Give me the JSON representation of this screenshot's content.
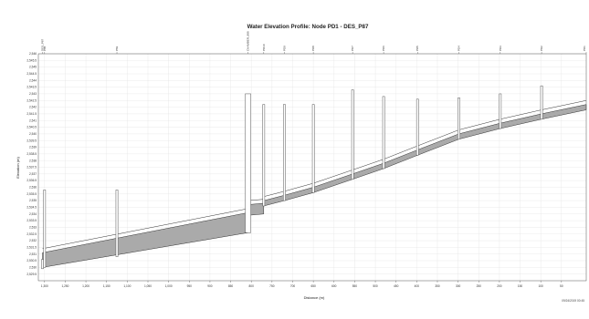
{
  "chart_data": {
    "type": "line",
    "title": "Water Elevation Profile:  Node PD1 - DES_P87",
    "xlabel": "Distance (m)",
    "ylabel": "Elevation (m)",
    "xlim": [
      1315,
      -10
    ],
    "ylim": [
      2529,
      2546
    ],
    "x_ticks": [
      1300,
      1250,
      1200,
      1150,
      1100,
      1050,
      1000,
      950,
      900,
      850,
      800,
      750,
      700,
      650,
      600,
      550,
      500,
      450,
      400,
      350,
      300,
      250,
      200,
      150,
      100,
      50
    ],
    "x_tick_labels": [
      "1,300",
      "1,250",
      "1,200",
      "1,150",
      "1,100",
      "1,050",
      "1,000",
      "950",
      "900",
      "850",
      "800",
      "750",
      "700",
      "650",
      "600",
      "550",
      "500",
      "450",
      "400",
      "350",
      "300",
      "250",
      "200",
      "150",
      "100",
      "50"
    ],
    "y_ticks": [
      2529.5,
      2530,
      2530.5,
      2531,
      2531.5,
      2532,
      2532.5,
      2533,
      2533.5,
      2534,
      2534.5,
      2535,
      2535.5,
      2536,
      2536.5,
      2537,
      2537.5,
      2538,
      2538.5,
      2539,
      2539.5,
      2540,
      2540.5,
      2541,
      2541.5,
      2542,
      2542.5,
      2543,
      2543.5,
      2544,
      2544.5,
      2545,
      2545.5,
      2546
    ],
    "y_tick_labels": [
      "2,529.5",
      "2,530",
      "2,530.5",
      "2,531",
      "2,531.5",
      "2,532",
      "2,532.5",
      "2,533",
      "2,533.5",
      "2,534",
      "2,534.5",
      "2,535",
      "2,535.5",
      "2,536",
      "2,536.5",
      "2,537",
      "2,537.5",
      "2,538",
      "2,538.5",
      "2,539",
      "2,539.5",
      "2,540",
      "2,540.5",
      "2,541",
      "2,541.5",
      "2,542",
      "2,542.5",
      "2,543",
      "2,543.5",
      "2,544",
      "2,544.5",
      "2,545",
      "2,545.5",
      "2,546"
    ],
    "nodes": [
      {
        "name": "DES_P87",
        "x": 1305,
        "invert": 2529.9,
        "top": 2530.6
      },
      {
        "name": "P85",
        "x": 1300,
        "invert": 2530.0,
        "top": 2535.8
      },
      {
        "name": "P83",
        "x": 1125,
        "invert": 2530.8,
        "top": 2535.8
      },
      {
        "name": "CHAMBER_888",
        "x": 808,
        "invert": 2532.6,
        "top": 2543.0
      },
      {
        "name": "PD10",
        "x": 770,
        "invert": 2534.6,
        "top": 2542.2
      },
      {
        "name": "PD9",
        "x": 720,
        "invert": 2535.0,
        "top": 2542.2
      },
      {
        "name": "PD8",
        "x": 650,
        "invert": 2535.6,
        "top": 2542.2
      },
      {
        "name": "PD7",
        "x": 555,
        "invert": 2536.6,
        "top": 2543.3
      },
      {
        "name": "PD6",
        "x": 480,
        "invert": 2537.4,
        "top": 2542.8
      },
      {
        "name": "PD5",
        "x": 398,
        "invert": 2538.4,
        "top": 2542.6
      },
      {
        "name": "PD4",
        "x": 298,
        "invert": 2539.6,
        "top": 2542.7
      },
      {
        "name": "PD3",
        "x": 198,
        "invert": 2540.4,
        "top": 2543.0
      },
      {
        "name": "PD2",
        "x": 98,
        "invert": 2541.1,
        "top": 2543.6
      },
      {
        "name": "PD1",
        "x": -10,
        "invert": 2541.8,
        "top": 2541.8
      }
    ],
    "water_segments": [
      {
        "x1": 1305,
        "x2": 808,
        "invert1": 2530.0,
        "invert2": 2532.6,
        "water1": 2531.1,
        "water2": 2534.1
      },
      {
        "x1": 808,
        "x2": 770,
        "invert1": 2533.9,
        "invert2": 2534.0,
        "water1": 2534.7,
        "water2": 2534.8
      },
      {
        "x1": 770,
        "x2": 720,
        "invert1": 2534.6,
        "invert2": 2535.0,
        "water1": 2535.0,
        "water2": 2535.4
      },
      {
        "x1": 720,
        "x2": 650,
        "invert1": 2535.0,
        "invert2": 2535.6,
        "water1": 2535.4,
        "water2": 2536.0
      },
      {
        "x1": 650,
        "x2": 555,
        "invert1": 2535.6,
        "invert2": 2536.6,
        "water1": 2536.0,
        "water2": 2537.0
      },
      {
        "x1": 555,
        "x2": 480,
        "invert1": 2536.6,
        "invert2": 2537.4,
        "water1": 2537.0,
        "water2": 2537.8
      },
      {
        "x1": 480,
        "x2": 398,
        "invert1": 2537.4,
        "invert2": 2538.4,
        "water1": 2537.8,
        "water2": 2538.8
      },
      {
        "x1": 398,
        "x2": 298,
        "invert1": 2538.4,
        "invert2": 2539.6,
        "water1": 2538.8,
        "water2": 2540.0
      },
      {
        "x1": 298,
        "x2": 198,
        "invert1": 2539.6,
        "invert2": 2540.4,
        "water1": 2540.0,
        "water2": 2540.8
      },
      {
        "x1": 198,
        "x2": 98,
        "invert1": 2540.4,
        "invert2": 2541.1,
        "water1": 2540.8,
        "water2": 2541.5
      },
      {
        "x1": 98,
        "x2": -10,
        "invert1": 2541.1,
        "invert2": 2541.8,
        "water1": 2541.5,
        "water2": 2542.2
      }
    ],
    "pipe_crown": [
      {
        "x1": 1305,
        "x2": 808,
        "y1": 2531.4,
        "y2": 2534.4
      },
      {
        "x1": 808,
        "x2": 770,
        "y1": 2535.0,
        "y2": 2535.1
      },
      {
        "x1": 770,
        "x2": 720,
        "y1": 2535.3,
        "y2": 2535.7
      },
      {
        "x1": 720,
        "x2": 650,
        "y1": 2535.7,
        "y2": 2536.3
      },
      {
        "x1": 650,
        "x2": 555,
        "y1": 2536.3,
        "y2": 2537.3
      },
      {
        "x1": 555,
        "x2": 480,
        "y1": 2537.3,
        "y2": 2538.1
      },
      {
        "x1": 480,
        "x2": 398,
        "y1": 2538.1,
        "y2": 2539.1
      },
      {
        "x1": 398,
        "x2": 298,
        "y1": 2539.1,
        "y2": 2540.3
      },
      {
        "x1": 298,
        "x2": 198,
        "y1": 2540.3,
        "y2": 2541.1
      },
      {
        "x1": 198,
        "x2": 98,
        "y1": 2541.1,
        "y2": 2541.8
      },
      {
        "x1": 98,
        "x2": -10,
        "y1": 2541.8,
        "y2": 2542.5
      }
    ],
    "grid": true,
    "timestamp": "09/24/2019 00:45",
    "colors": {
      "water_fill": "#aaaaaa",
      "line": "#333333",
      "grid": "#dddddd",
      "structure": "#555555"
    }
  }
}
